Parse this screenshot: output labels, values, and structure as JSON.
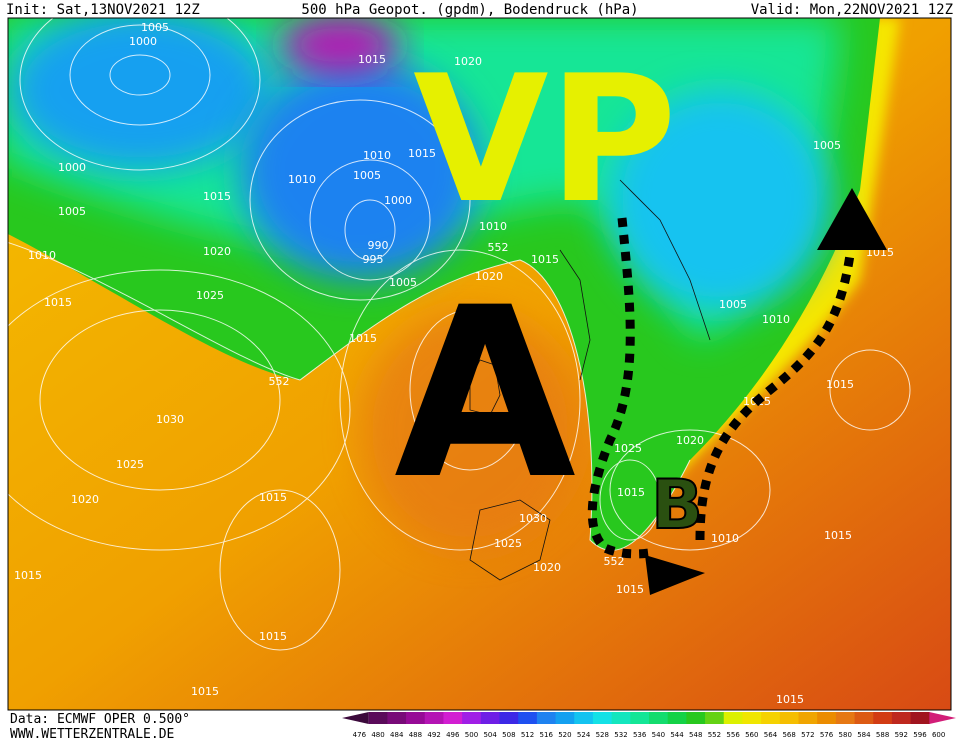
{
  "header": {
    "init": "Init: Sat,13NOV2021 12Z",
    "title": "500 hPa Geopot. (gpdm), Bodendruck (hPa)",
    "valid": "Valid: Mon,22NOV2021 12Z"
  },
  "annotations": {
    "vp": "VP",
    "a": "A",
    "b": "B"
  },
  "isobar_labels": [
    "1005",
    "1000",
    "1015",
    "1020",
    "1010",
    "1015",
    "1005",
    "1010",
    "1000",
    "1000",
    "1005",
    "1015",
    "1020",
    "990",
    "995",
    "1010",
    "552",
    "1015",
    "1010",
    "1020",
    "1005",
    "1015",
    "1025",
    "1015",
    "552",
    "1030",
    "1025",
    "1020",
    "1015",
    "1005",
    "1015",
    "1005",
    "1010",
    "1015",
    "1015",
    "1025",
    "1020",
    "1015",
    "1030",
    "1025",
    "1010",
    "1015",
    "1020",
    "552",
    "1015",
    "1015",
    "1015",
    "1015",
    "1015"
  ],
  "footer": {
    "data": "Data: ECMWF OPER 0.500°",
    "url": "WWW.WETTERZENTRALE.DE"
  },
  "colorbar": {
    "labels": [
      476,
      480,
      484,
      488,
      492,
      496,
      500,
      504,
      508,
      512,
      516,
      520,
      524,
      528,
      532,
      536,
      540,
      544,
      548,
      552,
      556,
      560,
      564,
      568,
      572,
      576,
      580,
      584,
      588,
      592,
      596,
      600
    ],
    "colors": [
      "#3c0a3c",
      "#5a0a5a",
      "#780a78",
      "#960a96",
      "#b414b4",
      "#d21ed2",
      "#a01ee6",
      "#6e1ee6",
      "#3c28e6",
      "#1e50f0",
      "#1e82f0",
      "#14a0f0",
      "#14c3f0",
      "#14e1e6",
      "#14e6be",
      "#14e696",
      "#14dc6e",
      "#14d246",
      "#28c81e",
      "#64d214",
      "#dcf000",
      "#f0e600",
      "#f5d200",
      "#f5be00",
      "#f0a500",
      "#eb8c00",
      "#e67814",
      "#dc5a14",
      "#d23c14",
      "#be281e",
      "#a0141e",
      "#d21e78"
    ]
  }
}
